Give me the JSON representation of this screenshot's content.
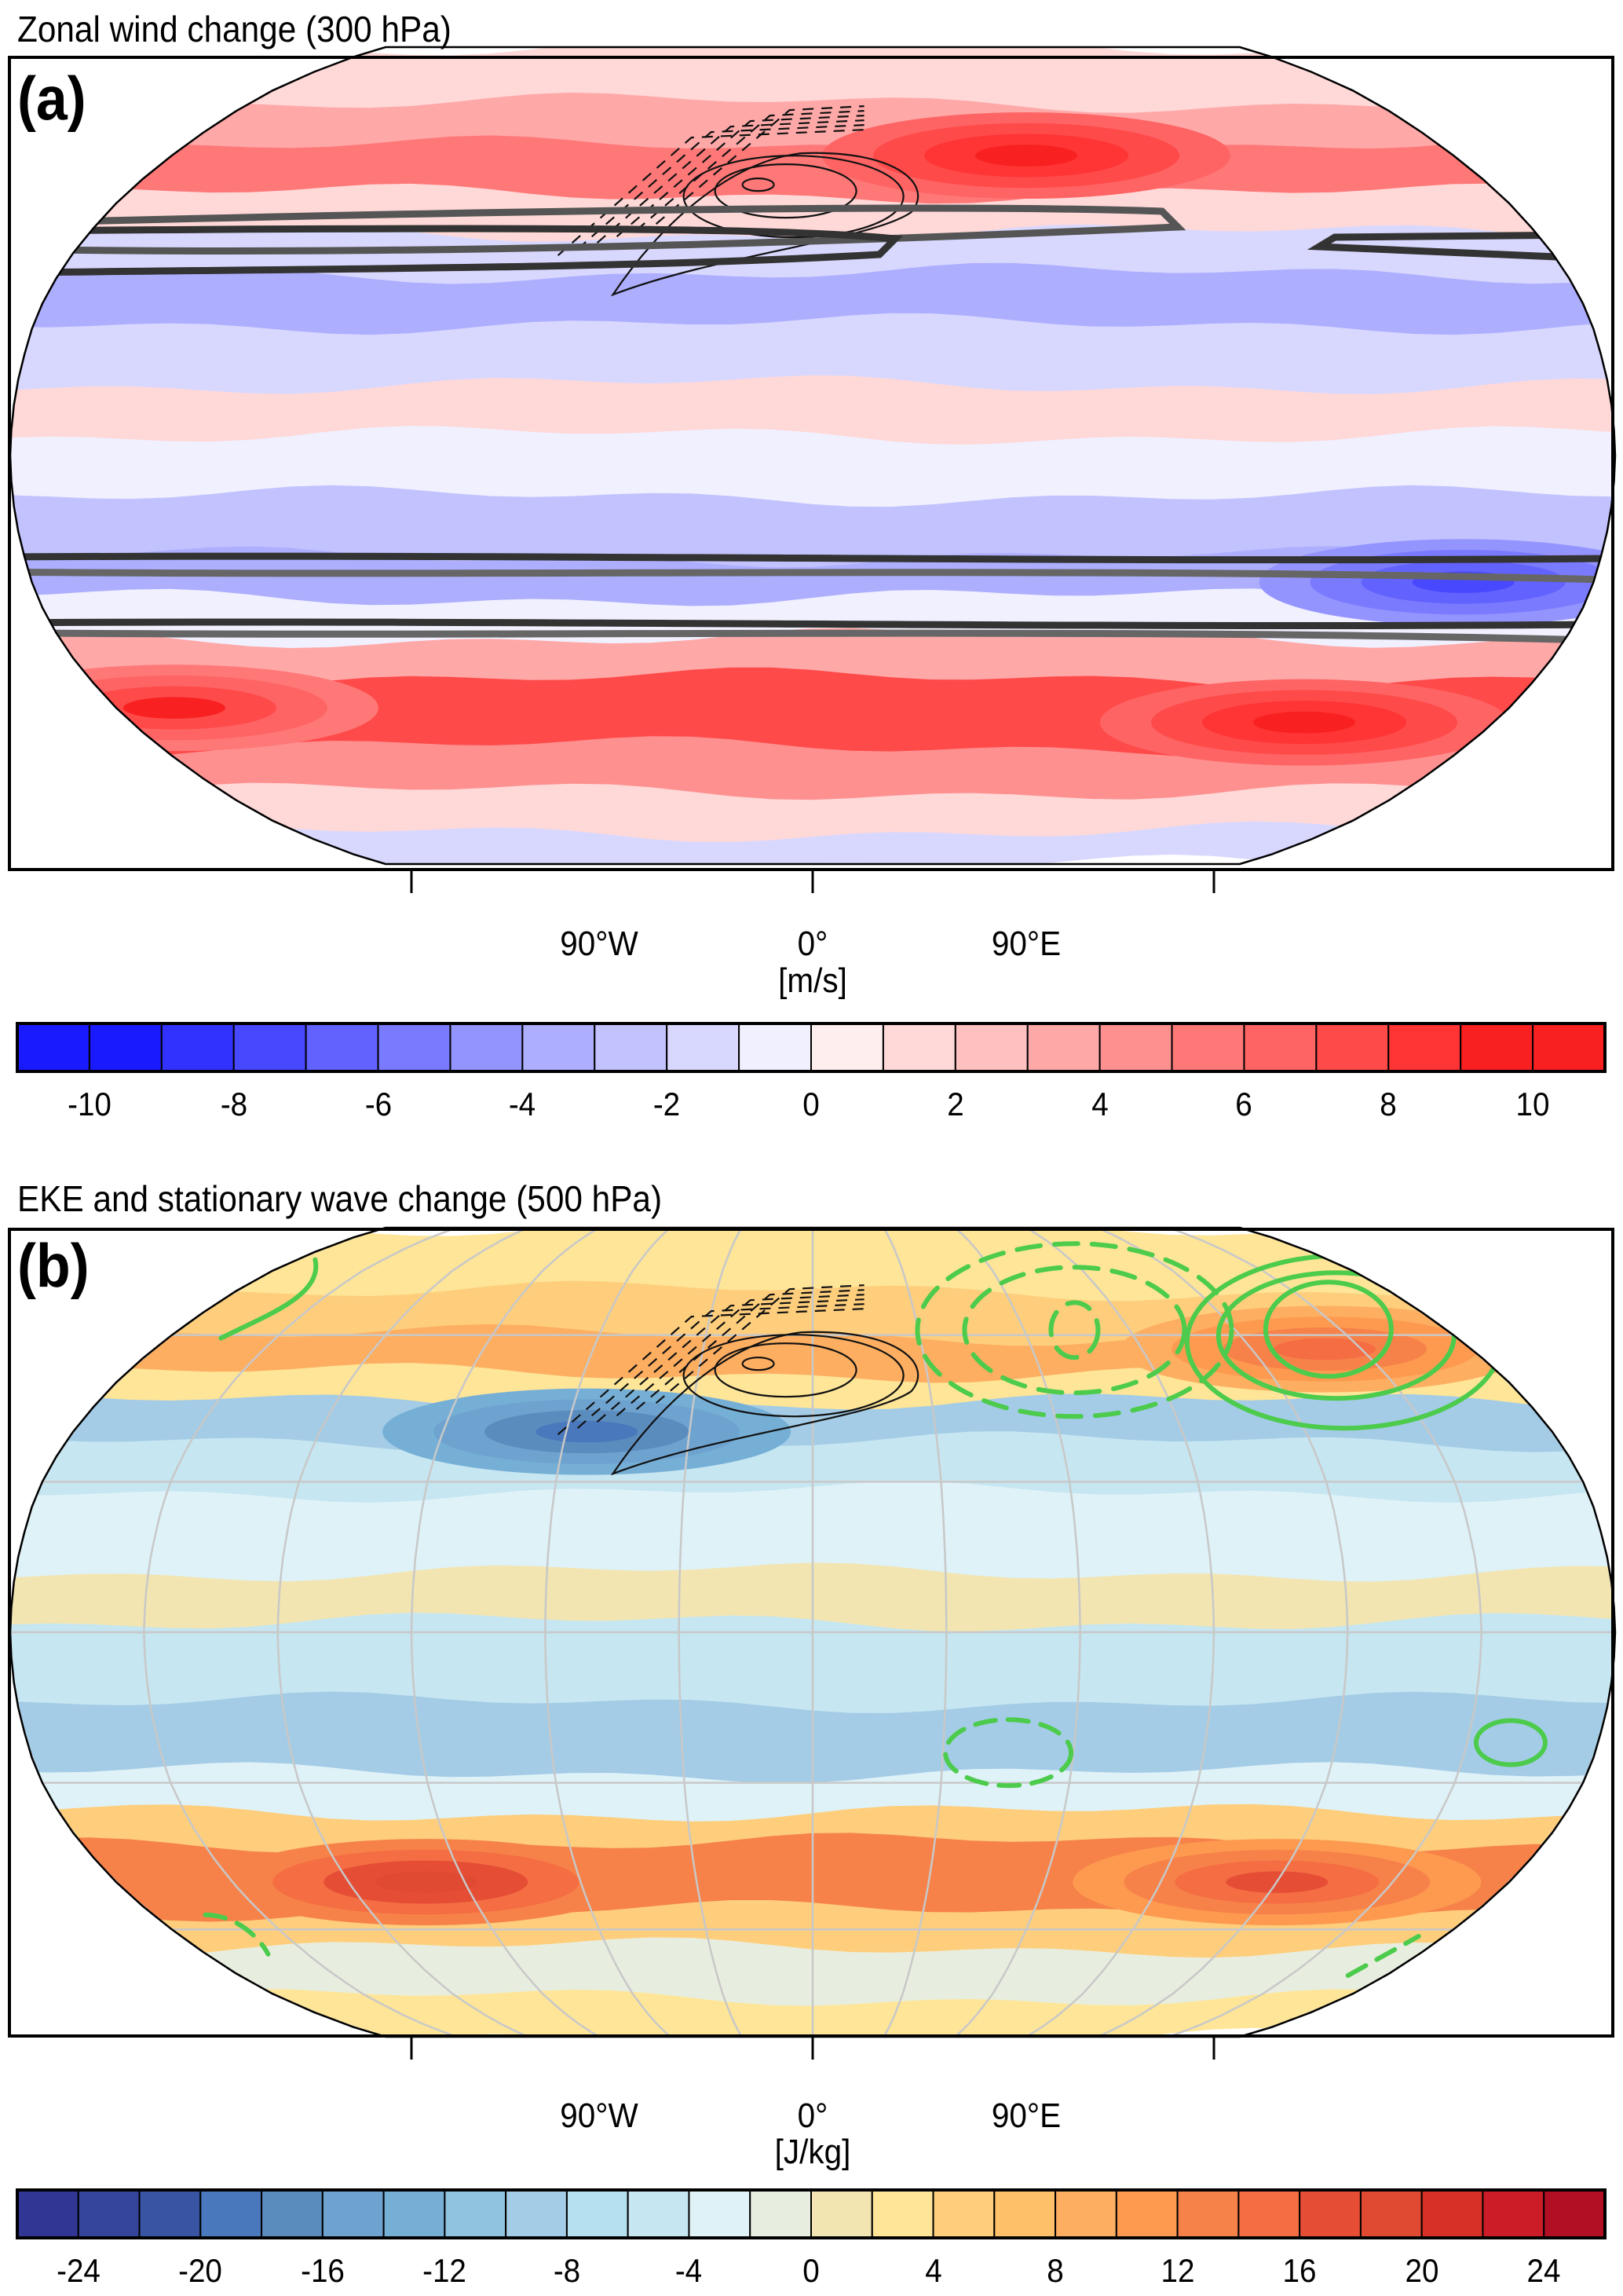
{
  "chart_data": [
    {
      "id": "a",
      "type": "heatmap",
      "projection": "Robinson",
      "title": "Zonal wind change (300 hPa)",
      "panel_label": "(a)",
      "variable": "zonal wind change",
      "units": "[m/s]",
      "xticks": [
        {
          "lon": -90,
          "label": "90°W"
        },
        {
          "lon": 0,
          "label": "0°"
        },
        {
          "lon": 90,
          "label": "90°E"
        }
      ],
      "graticule": false,
      "colorbar": {
        "levels": [
          -11,
          -10,
          -9,
          -8,
          -7,
          -6,
          -5,
          -4,
          -3,
          -2,
          -1,
          0,
          1,
          2,
          3,
          4,
          5,
          6,
          7,
          8,
          9,
          10,
          11
        ],
        "tick_labels": [
          "-10",
          "-8",
          "-6",
          "-4",
          "-2",
          "0",
          "2",
          "4",
          "6",
          "8",
          "10"
        ],
        "tick_values": [
          -10,
          -8,
          -6,
          -4,
          -2,
          0,
          2,
          4,
          6,
          8,
          10
        ],
        "colors": [
          "#1a1aff",
          "#1a1aff",
          "#3232ff",
          "#4848ff",
          "#6262ff",
          "#7a7aff",
          "#9494ff",
          "#aeaeff",
          "#c2c2ff",
          "#d8d8ff",
          "#f0f0ff",
          "#ffeeee",
          "#ffd8d8",
          "#ffc0c0",
          "#ffa8a8",
          "#ff9090",
          "#ff7878",
          "#ff6464",
          "#ff4a4a",
          "#ff3434",
          "#f82020",
          "#f82020"
        ]
      },
      "zonal_bands": [
        {
          "lat_from": 90,
          "lat_to": 72,
          "value": 1.5
        },
        {
          "lat_from": 72,
          "lat_to": 62,
          "value": 3.5
        },
        {
          "lat_from": 62,
          "lat_to": 52,
          "value": 5.5
        },
        {
          "lat_from": 52,
          "lat_to": 44,
          "value": 1.0
        },
        {
          "lat_from": 44,
          "lat_to": 36,
          "value": -1.5
        },
        {
          "lat_from": 36,
          "lat_to": 26,
          "value": -3.5
        },
        {
          "lat_from": 26,
          "lat_to": 14,
          "value": -1.5
        },
        {
          "lat_from": 14,
          "lat_to": 4,
          "value": 1.5
        },
        {
          "lat_from": 4,
          "lat_to": -8,
          "value": -1.0
        },
        {
          "lat_from": -8,
          "lat_to": -20,
          "value": -2.5
        },
        {
          "lat_from": -20,
          "lat_to": -28,
          "value": -3.5
        },
        {
          "lat_from": -28,
          "lat_to": -36,
          "value": -0.5
        },
        {
          "lat_from": -36,
          "lat_to": -44,
          "value": 3.5
        },
        {
          "lat_from": -44,
          "lat_to": -58,
          "value": 7.5
        },
        {
          "lat_from": -58,
          "lat_to": -68,
          "value": 4.5
        },
        {
          "lat_from": -68,
          "lat_to": -78,
          "value": 1.0
        },
        {
          "lat_from": -78,
          "lat_to": -90,
          "value": -1.5
        }
      ],
      "anomalies": [
        {
          "lon": 60,
          "lat": 60,
          "value": 9.5,
          "note": "jet maximum north of topography"
        },
        {
          "lon": 130,
          "lat": -53,
          "value": 9.5
        },
        {
          "lon": -165,
          "lat": -50,
          "value": 9.0
        },
        {
          "lon": 150,
          "lat": -25,
          "value": -7.5
        }
      ],
      "overlays": [
        {
          "name": "mean jet contours (climatology)",
          "style": "thick black/grey",
          "description": "paired outlines at ~45–48°N, ~25–30°S, ~35–40°S"
        },
        {
          "name": "topography height",
          "style": "thin black solid (positive) / dashed (negative)",
          "center_lon": -15,
          "center_lat": 48
        }
      ]
    },
    {
      "id": "b",
      "type": "heatmap",
      "projection": "Robinson",
      "title": "EKE and stationary wave change (500 hPa)",
      "panel_label": "(b)",
      "variable": "EKE change",
      "units": "[J/kg]",
      "xticks": [
        {
          "lon": -90,
          "label": "90°W"
        },
        {
          "lon": 0,
          "label": "0°"
        },
        {
          "lon": 90,
          "label": "90°E"
        }
      ],
      "graticule": true,
      "colorbar": {
        "levels": [
          -26,
          -24,
          -22,
          -20,
          -18,
          -16,
          -14,
          -12,
          -10,
          -8,
          -6,
          -4,
          -2,
          0,
          2,
          4,
          6,
          8,
          10,
          12,
          14,
          16,
          18,
          20,
          22,
          24,
          26
        ],
        "tick_labels": [
          "-24",
          "-20",
          "-16",
          "-12",
          "-8",
          "-4",
          "0",
          "4",
          "8",
          "12",
          "16",
          "20",
          "24"
        ],
        "tick_values": [
          -24,
          -20,
          -16,
          -12,
          -8,
          -4,
          0,
          4,
          8,
          12,
          16,
          20,
          24
        ],
        "colors": [
          "#313695",
          "#36459c",
          "#3a54a4",
          "#4a78bc",
          "#5a8cbe",
          "#6ea3d0",
          "#76afd6",
          "#8fc3df",
          "#a4cce6",
          "#b5e0ef",
          "#c6e6f1",
          "#dff2f8",
          "#e8eedf",
          "#f2e5b2",
          "#fee598",
          "#fece7c",
          "#fec068",
          "#fdae61",
          "#fd9a50",
          "#f78249",
          "#f46d43",
          "#e54e35",
          "#e04a33",
          "#d73027",
          "#cc1c28",
          "#b20e24"
        ]
      },
      "zonal_bands": [
        {
          "lat_from": 90,
          "lat_to": 70,
          "value": 3.0
        },
        {
          "lat_from": 70,
          "lat_to": 60,
          "value": 5.0
        },
        {
          "lat_from": 60,
          "lat_to": 52,
          "value": 9.0
        },
        {
          "lat_from": 52,
          "lat_to": 46,
          "value": 2.0
        },
        {
          "lat_from": 46,
          "lat_to": 38,
          "value": -9.0
        },
        {
          "lat_from": 38,
          "lat_to": 28,
          "value": -6.0
        },
        {
          "lat_from": 28,
          "lat_to": 12,
          "value": -3.0
        },
        {
          "lat_from": 12,
          "lat_to": 2,
          "value": 1.0
        },
        {
          "lat_from": 2,
          "lat_to": -14,
          "value": -5.0
        },
        {
          "lat_from": -14,
          "lat_to": -28,
          "value": -9.0
        },
        {
          "lat_from": -28,
          "lat_to": -36,
          "value": -3.0
        },
        {
          "lat_from": -36,
          "lat_to": -42,
          "value": 5.0
        },
        {
          "lat_from": -42,
          "lat_to": -56,
          "value": 13.0
        },
        {
          "lat_from": -56,
          "lat_to": -64,
          "value": 5.0
        },
        {
          "lat_from": -64,
          "lat_to": -76,
          "value": -1.0
        },
        {
          "lat_from": -76,
          "lat_to": -90,
          "value": 2.0
        }
      ],
      "anomalies": [
        {
          "lon": -55,
          "lat": 40,
          "value": -20.0,
          "note": "EKE minimum over Atlantic sector"
        },
        {
          "lon": 140,
          "lat": 57,
          "value": 15.0
        },
        {
          "lon": -100,
          "lat": -50,
          "value": 19.0
        },
        {
          "lon": 120,
          "lat": -50,
          "value": 17.0
        }
      ],
      "overlays": [
        {
          "name": "stationary wave change",
          "style": "green solid (positive) / dashed (negative)"
        },
        {
          "name": "topography height",
          "style": "thin black solid / dashed",
          "center_lon": -15,
          "center_lat": 48
        }
      ]
    }
  ]
}
